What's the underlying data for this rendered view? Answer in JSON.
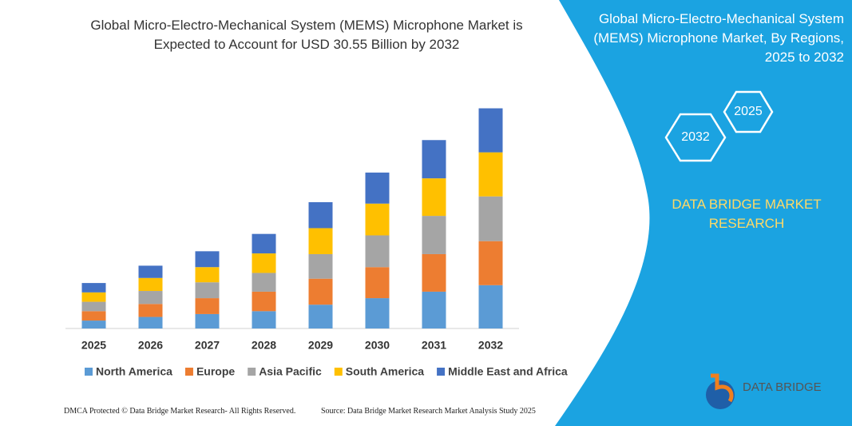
{
  "chart_data": {
    "type": "bar",
    "stacked": true,
    "title": "Global Micro-Electro-Mechanical System (MEMS) Microphone Market is Expected to Account for USD 30.55 Billion by 2032",
    "categories": [
      "2025",
      "2026",
      "2027",
      "2028",
      "2029",
      "2030",
      "2031",
      "2032"
    ],
    "series": [
      {
        "name": "North America",
        "color": "#5b9bd5",
        "values": [
          1.1,
          1.6,
          2.0,
          2.4,
          3.3,
          4.2,
          5.1,
          6.0
        ]
      },
      {
        "name": "Europe",
        "color": "#ed7d31",
        "values": [
          1.3,
          1.8,
          2.2,
          2.7,
          3.6,
          4.3,
          5.2,
          6.1
        ]
      },
      {
        "name": "Asia Pacific",
        "color": "#a5a5a5",
        "values": [
          1.3,
          1.8,
          2.2,
          2.6,
          3.4,
          4.4,
          5.3,
          6.2
        ]
      },
      {
        "name": "South America",
        "color": "#ffc000",
        "values": [
          1.3,
          1.8,
          2.1,
          2.7,
          3.6,
          4.4,
          5.2,
          6.1
        ]
      },
      {
        "name": "Middle East and Africa",
        "color": "#4472c4",
        "values": [
          1.3,
          1.7,
          2.2,
          2.7,
          3.6,
          4.3,
          5.3,
          6.1
        ]
      }
    ],
    "ylim": [
      0,
      31
    ],
    "legend": "bottom"
  },
  "side_panel": {
    "title": "Global Micro-Electro-Mechanical System (MEMS) Microphone Market, By Regions, 2025 to 2032",
    "hexagons": [
      "2025",
      "2032"
    ],
    "brand": "DATA BRIDGE MARKET RESEARCH"
  },
  "logo": {
    "name": "DATA BRIDGE"
  },
  "footer": {
    "left": "DMCA Protected © Data Bridge Market Research- All Rights Reserved.",
    "right": "Source: Data Bridge Market Research Market Analysis Study 2025"
  }
}
